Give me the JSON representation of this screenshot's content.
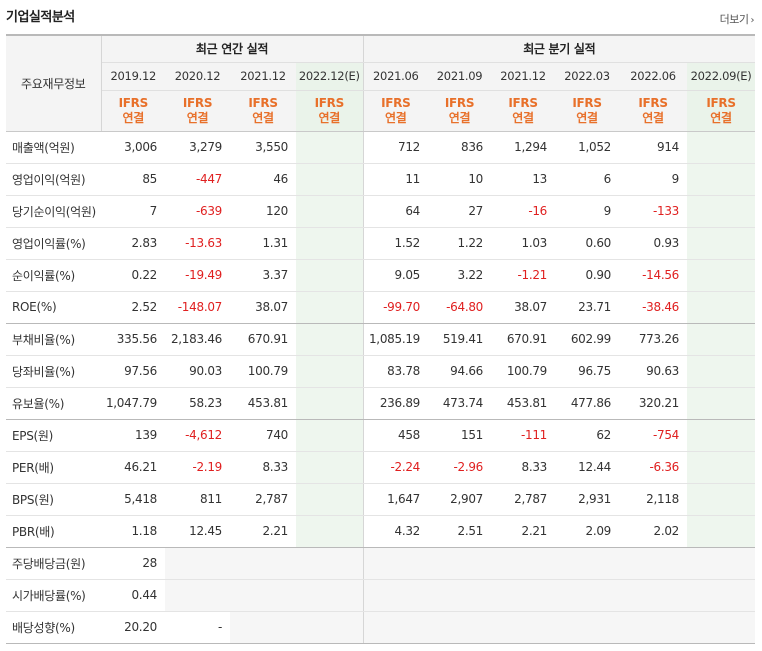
{
  "header": {
    "title": "기업실적분석",
    "more_label": "더보기",
    "more_chevron": "›"
  },
  "table": {
    "row_header": "주요재무정보",
    "annual_title": "최근 연간 실적",
    "quarter_title": "최근 분기 실적",
    "ifrs_line1": "IFRS",
    "ifrs_line2": "연결",
    "annual_dates": [
      "2019.12",
      "2020.12",
      "2021.12",
      "2022.12(E)"
    ],
    "quarter_dates": [
      "2021.06",
      "2021.09",
      "2021.12",
      "2022.03",
      "2022.06",
      "2022.09(E)"
    ],
    "rows": [
      {
        "label": "매출액(억원)",
        "annual": [
          "3,006",
          "3,279",
          "3,550",
          ""
        ],
        "quarter": [
          "712",
          "836",
          "1,294",
          "1,052",
          "914",
          ""
        ]
      },
      {
        "label": "영업이익(억원)",
        "annual": [
          "85",
          "-447",
          "46",
          ""
        ],
        "quarter": [
          "11",
          "10",
          "13",
          "6",
          "9",
          ""
        ]
      },
      {
        "label": "당기순이익(억원)",
        "annual": [
          "7",
          "-639",
          "120",
          ""
        ],
        "quarter": [
          "64",
          "27",
          "-16",
          "9",
          "-133",
          ""
        ]
      },
      {
        "label": "영업이익률(%)",
        "annual": [
          "2.83",
          "-13.63",
          "1.31",
          ""
        ],
        "quarter": [
          "1.52",
          "1.22",
          "1.03",
          "0.60",
          "0.93",
          ""
        ]
      },
      {
        "label": "순이익률(%)",
        "annual": [
          "0.22",
          "-19.49",
          "3.37",
          ""
        ],
        "quarter": [
          "9.05",
          "3.22",
          "-1.21",
          "0.90",
          "-14.56",
          ""
        ]
      },
      {
        "label": "ROE(%)",
        "annual": [
          "2.52",
          "-148.07",
          "38.07",
          ""
        ],
        "quarter": [
          "-99.70",
          "-64.80",
          "38.07",
          "23.71",
          "-38.46",
          ""
        ]
      },
      {
        "label": "부채비율(%)",
        "annual": [
          "335.56",
          "2,183.46",
          "670.91",
          ""
        ],
        "quarter": [
          "1,085.19",
          "519.41",
          "670.91",
          "602.99",
          "773.26",
          ""
        ]
      },
      {
        "label": "당좌비율(%)",
        "annual": [
          "97.56",
          "90.03",
          "100.79",
          ""
        ],
        "quarter": [
          "83.78",
          "94.66",
          "100.79",
          "96.75",
          "90.63",
          ""
        ]
      },
      {
        "label": "유보율(%)",
        "annual": [
          "1,047.79",
          "58.23",
          "453.81",
          ""
        ],
        "quarter": [
          "236.89",
          "473.74",
          "453.81",
          "477.86",
          "320.21",
          ""
        ]
      },
      {
        "label": "EPS(원)",
        "annual": [
          "139",
          "-4,612",
          "740",
          ""
        ],
        "quarter": [
          "458",
          "151",
          "-111",
          "62",
          "-754",
          ""
        ]
      },
      {
        "label": "PER(배)",
        "annual": [
          "46.21",
          "-2.19",
          "8.33",
          ""
        ],
        "quarter": [
          "-2.24",
          "-2.96",
          "8.33",
          "12.44",
          "-6.36",
          ""
        ]
      },
      {
        "label": "BPS(원)",
        "annual": [
          "5,418",
          "811",
          "2,787",
          ""
        ],
        "quarter": [
          "1,647",
          "2,907",
          "2,787",
          "2,931",
          "2,118",
          ""
        ]
      },
      {
        "label": "PBR(배)",
        "annual": [
          "1.18",
          "12.45",
          "2.21",
          ""
        ],
        "quarter": [
          "4.32",
          "2.51",
          "2.21",
          "2.09",
          "2.02",
          ""
        ]
      },
      {
        "label": "주당배당금(원)",
        "annual": [
          "28",
          "",
          "",
          ""
        ],
        "quarter": [
          "",
          "",
          "",
          "",
          "",
          ""
        ],
        "dividend": true
      },
      {
        "label": "시가배당률(%)",
        "annual": [
          "0.44",
          "",
          "",
          ""
        ],
        "quarter": [
          "",
          "",
          "",
          "",
          "",
          ""
        ],
        "dividend": true
      },
      {
        "label": "배당성향(%)",
        "annual": [
          "20.20",
          "-",
          "",
          ""
        ],
        "quarter": [
          "",
          "",
          "",
          "",
          "",
          ""
        ],
        "dividend": true
      }
    ]
  },
  "colors": {
    "negative": "#e02020",
    "ifrs": "#e8702a",
    "estimate_bg": "#eef6ee"
  }
}
